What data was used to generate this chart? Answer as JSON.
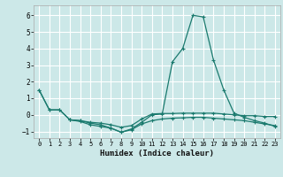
{
  "title": "",
  "xlabel": "Humidex (Indice chaleur)",
  "ylabel": "",
  "bg_color": "#cce8e8",
  "grid_color": "#ffffff",
  "line_color": "#1a7a6e",
  "xlim": [
    -0.5,
    23.5
  ],
  "ylim": [
    -1.4,
    6.6
  ],
  "yticks": [
    -1,
    0,
    1,
    2,
    3,
    4,
    5,
    6
  ],
  "xticks": [
    0,
    1,
    2,
    3,
    4,
    5,
    6,
    7,
    8,
    9,
    10,
    11,
    12,
    13,
    14,
    15,
    16,
    17,
    18,
    19,
    20,
    21,
    22,
    23
  ],
  "line1_x": [
    0,
    1,
    2,
    3,
    4,
    5,
    6,
    7,
    8,
    9,
    10,
    11,
    12,
    13,
    14,
    15,
    16,
    17,
    18,
    19,
    20,
    21,
    22,
    23
  ],
  "line1_y": [
    1.5,
    0.3,
    0.3,
    -0.3,
    -0.4,
    -0.6,
    -0.7,
    -0.8,
    -1.05,
    -0.85,
    -0.45,
    0.0,
    0.05,
    3.2,
    4.0,
    6.0,
    5.9,
    3.3,
    1.5,
    0.1,
    -0.15,
    -0.35,
    -0.5,
    -0.7
  ],
  "line2_x": [
    0,
    1,
    2,
    3,
    4,
    5,
    6,
    7,
    8,
    9,
    10,
    11,
    12,
    13,
    14,
    15,
    16,
    17,
    18,
    19,
    20,
    21,
    22,
    23
  ],
  "line2_y": [
    1.5,
    0.3,
    0.3,
    -0.3,
    -0.35,
    -0.45,
    -0.5,
    -0.6,
    -0.75,
    -0.65,
    -0.25,
    0.05,
    0.08,
    0.08,
    0.1,
    0.1,
    0.1,
    0.1,
    0.05,
    0.0,
    -0.05,
    -0.05,
    -0.1,
    -0.1
  ],
  "line3_x": [
    3,
    4,
    5,
    6,
    7,
    8,
    9,
    10,
    11,
    12,
    13,
    14,
    15,
    16,
    17,
    18,
    19,
    20,
    21,
    22,
    23
  ],
  "line3_y": [
    -0.3,
    -0.35,
    -0.5,
    -0.6,
    -0.8,
    -1.05,
    -0.9,
    -0.55,
    -0.35,
    -0.25,
    -0.2,
    -0.18,
    -0.15,
    -0.15,
    -0.2,
    -0.25,
    -0.3,
    -0.35,
    -0.45,
    -0.55,
    -0.65
  ]
}
